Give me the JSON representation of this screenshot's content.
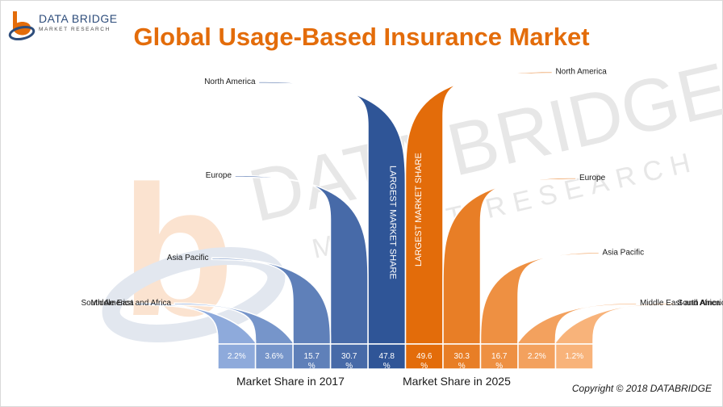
{
  "brand": {
    "name": "DATA BRIDGE",
    "tagline": "MARKET RESEARCH",
    "watermark_name": "DATA BRIDGE",
    "watermark_tagline": "MARKET RESEARCH"
  },
  "copyright": "Copyright © 2018 DATABRIDGE",
  "colors": {
    "title": "#e36c0a",
    "blue_dark": "#2f5597",
    "blue_light": "#8eaadb",
    "orange_dark": "#e36c0a",
    "orange_light": "#f8b37a"
  },
  "chart_data": {
    "type": "bar",
    "title": "Global Usage-Based Insurance Market",
    "annotation": "LARGEST MARKET SHARE",
    "categories": [
      "North America",
      "Europe",
      "Asia Pacific",
      "Middle East and Africa",
      "South America"
    ],
    "series": [
      {
        "name": "Market Share in 2017",
        "values": [
          47.8,
          30.7,
          15.7,
          3.6,
          2.2
        ],
        "labels": [
          "47.8 %",
          "30.7 %",
          "15.7 %",
          "3.6%",
          "2.2%"
        ]
      },
      {
        "name": "Market Share in 2025",
        "values": [
          49.6,
          30.3,
          16.7,
          2.2,
          1.2
        ],
        "labels": [
          "49.6 %",
          "30.3 %",
          "16.7 %",
          "2.2%",
          "1.2%"
        ]
      }
    ]
  }
}
